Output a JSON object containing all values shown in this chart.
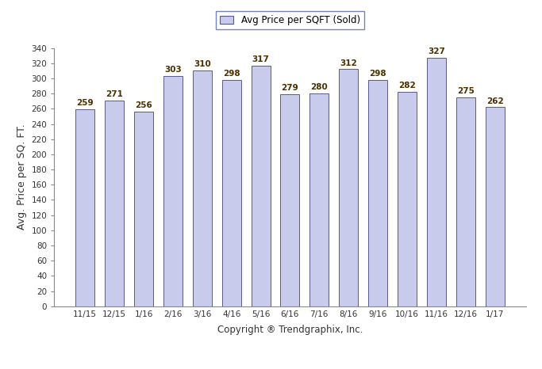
{
  "categories": [
    "11/15",
    "12/15",
    "1/16",
    "2/16",
    "3/16",
    "4/16",
    "5/16",
    "6/16",
    "7/16",
    "8/16",
    "9/16",
    "10/16",
    "11/16",
    "12/16",
    "1/17"
  ],
  "values": [
    259,
    271,
    256,
    303,
    310,
    298,
    317,
    279,
    280,
    312,
    298,
    282,
    327,
    275,
    262
  ],
  "bar_color": "#c8cbec",
  "bar_edgecolor": "#5a5a8a",
  "ylim": [
    0,
    340
  ],
  "yticks": [
    0,
    20,
    40,
    60,
    80,
    100,
    120,
    140,
    160,
    180,
    200,
    220,
    240,
    260,
    280,
    300,
    320,
    340
  ],
  "ylabel": "Avg. Price per SQ. FT.",
  "xlabel": "Copyright ® Trendgraphix, Inc.",
  "legend_label": "Avg Price per SQFT (Sold)",
  "label_fontsize": 8.5,
  "tick_fontsize": 7.5,
  "ylabel_fontsize": 9,
  "xlabel_fontsize": 8.5,
  "bar_label_fontsize": 7.5,
  "bar_label_color": "#4a3000",
  "bar_label_fontweight": "bold",
  "background_color": "#ffffff",
  "bar_width": 0.65,
  "spine_color": "#888888",
  "legend_edgecolor": "#5566aa"
}
